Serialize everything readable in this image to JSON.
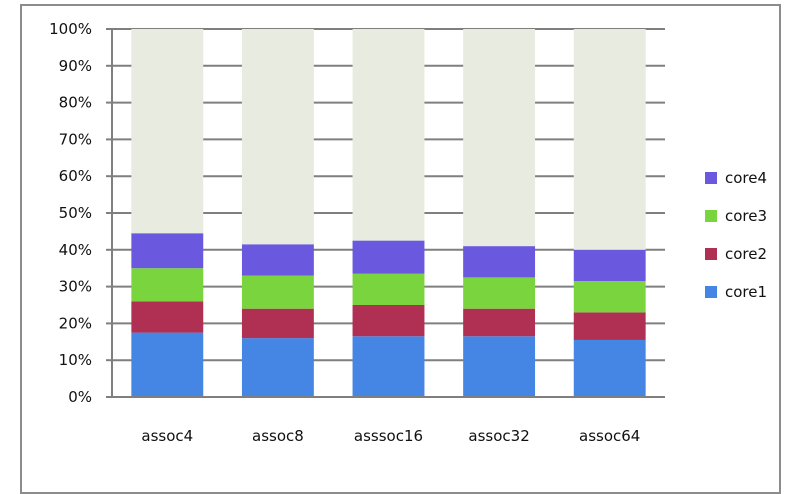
{
  "chart_data": {
    "type": "bar",
    "stacked": true,
    "percent_stacked": true,
    "categories": [
      "assoc4",
      "assoc8",
      "asssoc16",
      "assoc32",
      "assoc64"
    ],
    "series": [
      {
        "name": "core1",
        "values": [
          17.5,
          16,
          16.5,
          16.5,
          15.5
        ],
        "color": "#4586e4"
      },
      {
        "name": "core2",
        "values": [
          8.5,
          8,
          8.5,
          7.5,
          7.5
        ],
        "color": "#b03054"
      },
      {
        "name": "core3",
        "values": [
          9,
          9,
          8.5,
          8.5,
          8.5
        ],
        "color": "#7ad43e"
      },
      {
        "name": "core4",
        "values": [
          9.5,
          8.5,
          9,
          8.5,
          8.5
        ],
        "color": "#6a58df"
      },
      {
        "name": "",
        "values": [
          55.5,
          58.5,
          57.5,
          59,
          60
        ],
        "color": "#e8ebdf"
      }
    ],
    "y_ticks": [
      "0%",
      "10%",
      "20%",
      "30%",
      "40%",
      "50%",
      "60%",
      "70%",
      "80%",
      "90%",
      "100%"
    ],
    "ylim": [
      0,
      100
    ],
    "grid": true,
    "legend": {
      "position": "right",
      "items": [
        {
          "label": "core4",
          "color": "#6a58df"
        },
        {
          "label": "core3",
          "color": "#7ad43e"
        },
        {
          "label": "core2",
          "color": "#b03054"
        },
        {
          "label": "core1",
          "color": "#4586e4"
        }
      ]
    },
    "title": "",
    "xlabel": "",
    "ylabel": ""
  }
}
